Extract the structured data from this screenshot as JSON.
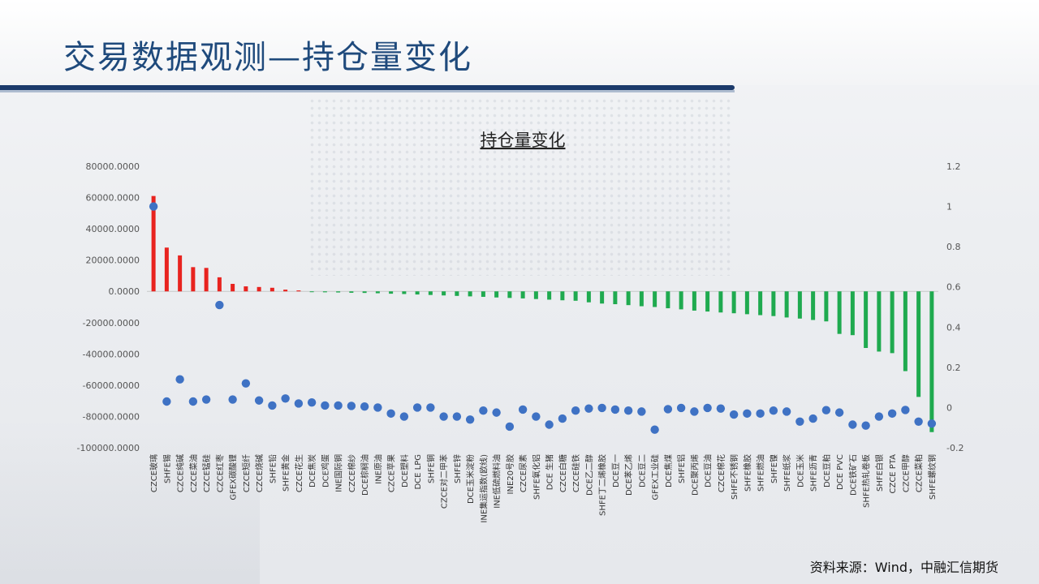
{
  "slide": {
    "title": "交易数据观测—持仓量变化",
    "source": "资料来源：Wind，中融汇信期货"
  },
  "colors": {
    "title": "#1f4a7c",
    "positive_bar": "#e8231f",
    "negative_bar": "#1faa4f",
    "marker": "#3f72c4",
    "rule": "#1c3a6b"
  },
  "chart_data": {
    "type": "bar",
    "title": "持仓量变化",
    "xlabel": "",
    "ylabel": "",
    "ylim": [
      -100000,
      80000
    ],
    "y_ticks": [
      "80000.0000",
      "60000.0000",
      "40000.0000",
      "20000.0000",
      "0.0000",
      "-20000.0000",
      "-40000.0000",
      "-60000.0000",
      "-80000.0000",
      "-100000.0000"
    ],
    "y2lim": [
      -0.2,
      1.2
    ],
    "y2_ticks": [
      "1.2",
      "1",
      "0.8",
      "0.6",
      "0.4",
      "0.2",
      "0",
      "-0.2"
    ],
    "grid": false,
    "legend": "none",
    "categories": [
      "CZCE玻璃",
      "SHFE锡",
      "CZCE纯碱",
      "CZCE菜油",
      "CZCE锰硅",
      "CZCE红枣",
      "GFEX碳酸锂",
      "CZCE短纤",
      "CZCE烧碱",
      "SHFE铅",
      "SHFE黄金",
      "CZCE花生",
      "DCE焦炭",
      "DCE鸡蛋",
      "INE国际铜",
      "CZCE棉纱",
      "DCE棕榈油",
      "INE原油",
      "CZCE苹果",
      "DCE塑料",
      "DCE LPG",
      "SHFE铜",
      "CZCE对二甲苯",
      "SHFE锌",
      "DCE玉米淀粉",
      "INE集运指数(欧线)",
      "INE低硫燃料油",
      "INE20号胶",
      "CZCE尿素",
      "SHFE氧化铝",
      "DCE 生猪",
      "CZCE白糖",
      "CZCE硅铁",
      "DCE乙二醇",
      "SHFE丁二烯橡胶",
      "DCE豆一",
      "DCE苯乙烯",
      "DCE豆二",
      "GFEX工业硅",
      "DCE焦煤",
      "SHFE铝",
      "DCE聚丙烯",
      "DCE豆油",
      "CZCE棉花",
      "SHFE不锈钢",
      "SHFE橡胶",
      "SHFE燃油",
      "SHFE镍",
      "SHFE纸浆",
      "DCE玉米",
      "SHFE沥青",
      "DCE豆粕",
      "DCE PVC",
      "DCE铁矿石",
      "SHFE热轧卷板",
      "SHFE白银",
      "CZCE PTA",
      "CZCE甲醇",
      "CZCE菜粕",
      "SHFE螺纹钢"
    ],
    "series": [
      {
        "type": "bar",
        "axis": "left",
        "values": [
          61000,
          28000,
          23000,
          15500,
          15000,
          9000,
          4800,
          3200,
          2800,
          2300,
          1100,
          600,
          -500,
          -600,
          -700,
          -900,
          -1000,
          -1200,
          -1500,
          -1700,
          -2000,
          -2300,
          -2600,
          -2900,
          -3200,
          -3500,
          -3900,
          -4200,
          -4500,
          -4900,
          -5300,
          -5700,
          -6000,
          -7000,
          -7800,
          -8200,
          -8800,
          -9500,
          -10000,
          -10800,
          -11500,
          -12300,
          -12900,
          -13500,
          -14000,
          -14600,
          -15200,
          -15800,
          -16700,
          -17400,
          -18300,
          -19200,
          -27200,
          -28000,
          -36200,
          -38500,
          -39500,
          -51000,
          -67500,
          -90000
        ]
      },
      {
        "type": "scatter",
        "axis": "right",
        "values": [
          1.0,
          0.03,
          0.14,
          0.03,
          0.04,
          0.51,
          0.04,
          0.12,
          0.035,
          0.01,
          0.045,
          0.02,
          0.025,
          0.01,
          0.01,
          0.008,
          0.005,
          0.0,
          -0.03,
          -0.045,
          0.0,
          0.0,
          -0.045,
          -0.045,
          -0.06,
          -0.015,
          -0.025,
          -0.095,
          -0.01,
          -0.045,
          -0.085,
          -0.055,
          -0.015,
          -0.005,
          -0.002,
          -0.01,
          -0.015,
          -0.02,
          -0.11,
          -0.008,
          -0.002,
          -0.02,
          -0.002,
          -0.005,
          -0.035,
          -0.03,
          -0.03,
          -0.015,
          -0.02,
          -0.07,
          -0.055,
          -0.013,
          -0.025,
          -0.085,
          -0.09,
          -0.045,
          -0.03,
          -0.012,
          -0.07,
          -0.08
        ]
      }
    ]
  }
}
